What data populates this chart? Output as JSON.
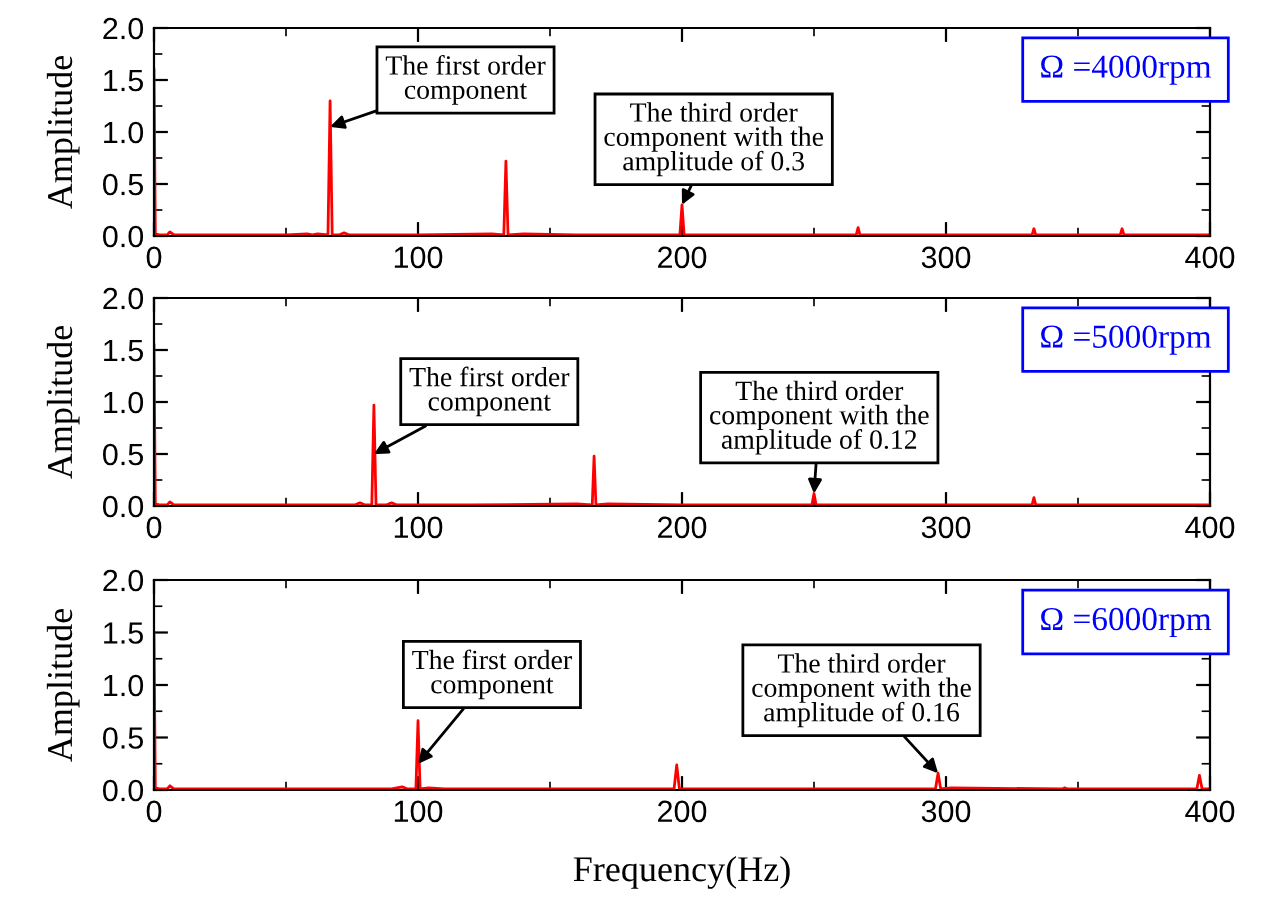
{
  "chart_data": [
    {
      "type": "line",
      "ylabel": "Amplitude",
      "xlim": [
        0,
        400
      ],
      "xticks": [
        0,
        100,
        200,
        300,
        400
      ],
      "ylim": [
        0,
        2.0
      ],
      "yticks": [
        {
          "value": 0,
          "label": "0.0"
        },
        {
          "value": 0.5,
          "label": "0.5"
        },
        {
          "value": 1.0,
          "label": "1.0"
        },
        {
          "value": 1.5,
          "label": "1.5"
        },
        {
          "value": 2.0,
          "label": "2.0"
        }
      ],
      "grid": false,
      "legend": false,
      "marker": "none",
      "line_style": "solid",
      "series": [
        {
          "color": "#ff0000",
          "x": [
            0,
            0.5,
            2,
            5,
            6,
            7.5,
            15,
            30,
            50,
            58,
            60,
            62,
            65.9,
            66.7,
            67.5,
            70,
            72,
            74,
            80,
            100,
            128,
            132.5,
            133.3,
            134.1,
            140,
            160,
            199.2,
            200,
            200.8,
            210,
            266,
            266.7,
            267.4,
            300,
            332.6,
            333.3,
            334,
            366,
            366.7,
            367.4,
            400
          ],
          "values": [
            1.6,
            0.02,
            0.01,
            0.01,
            0.04,
            0.01,
            0.01,
            0.01,
            0.01,
            0.02,
            0.01,
            0.02,
            0.01,
            1.3,
            0.01,
            0.01,
            0.03,
            0.01,
            0.01,
            0.01,
            0.02,
            0.01,
            0.72,
            0.01,
            0.02,
            0.01,
            0.01,
            0.3,
            0.01,
            0.01,
            0.01,
            0.08,
            0.01,
            0.01,
            0.01,
            0.07,
            0.01,
            0.01,
            0.07,
            0.01,
            0.01
          ]
        }
      ],
      "annotations": [
        {
          "text": "The first order\ncomponent",
          "x": 66.7,
          "y": 1.05
        },
        {
          "text": "The third order\ncomponent with the\namplitude of 0.3",
          "x": 200,
          "y": 0.3
        },
        "Ω =4000rpm"
      ]
    },
    {
      "type": "line",
      "ylabel": "Amplitude",
      "xlim": [
        0,
        400
      ],
      "xticks": [
        0,
        100,
        200,
        300,
        400
      ],
      "ylim": [
        0,
        2.0
      ],
      "yticks": [
        {
          "value": 0,
          "label": "0.0"
        },
        {
          "value": 0.5,
          "label": "0.5"
        },
        {
          "value": 1.0,
          "label": "1.0"
        },
        {
          "value": 1.5,
          "label": "1.5"
        },
        {
          "value": 2.0,
          "label": "2.0"
        }
      ],
      "grid": false,
      "legend": false,
      "marker": "none",
      "line_style": "solid",
      "series": [
        {
          "color": "#ff0000",
          "x": [
            0,
            0.5,
            2,
            5,
            6,
            7.5,
            20,
            50,
            76,
            78,
            80,
            82.5,
            83.3,
            84.1,
            88,
            90,
            92,
            120,
            160,
            166,
            166.7,
            167.4,
            172,
            200,
            249.2,
            250,
            250.8,
            300,
            332.6,
            333.3,
            334,
            400
          ],
          "values": [
            1.55,
            0.02,
            0.01,
            0.01,
            0.04,
            0.01,
            0.01,
            0.01,
            0.01,
            0.03,
            0.01,
            0.01,
            0.97,
            0.01,
            0.01,
            0.03,
            0.01,
            0.01,
            0.02,
            0.01,
            0.48,
            0.01,
            0.02,
            0.01,
            0.01,
            0.12,
            0.01,
            0.01,
            0.01,
            0.08,
            0.01,
            0.01
          ]
        }
      ],
      "annotations": [
        {
          "text": "The first order\ncomponent",
          "x": 83.3,
          "y": 0.5
        },
        {
          "text": "The third order\ncomponent with the\namplitude of 0.12",
          "x": 250,
          "y": 0.12
        },
        "Ω =5000rpm"
      ]
    },
    {
      "type": "line",
      "xlabel": "Frequency(Hz)",
      "ylabel": "Amplitude",
      "xlim": [
        0,
        400
      ],
      "xticks": [
        0,
        100,
        200,
        300,
        400
      ],
      "ylim": [
        0,
        2.0
      ],
      "yticks": [
        {
          "value": 0,
          "label": "0.0"
        },
        {
          "value": 0.5,
          "label": "0.5"
        },
        {
          "value": 1.0,
          "label": "1.0"
        },
        {
          "value": 1.5,
          "label": "1.5"
        },
        {
          "value": 2.0,
          "label": "2.0"
        }
      ],
      "grid": false,
      "legend": false,
      "marker": "none",
      "line_style": "solid",
      "series": [
        {
          "color": "#ff0000",
          "x": [
            0,
            0.5,
            2,
            5,
            6,
            7.5,
            20,
            50,
            90,
            94,
            96,
            99.2,
            100,
            100.8,
            104,
            110,
            150,
            197,
            198,
            199,
            210,
            250,
            290,
            296,
            297,
            298,
            302,
            344,
            345,
            346,
            390,
            395,
            396,
            397,
            400
          ],
          "values": [
            1.5,
            0.02,
            0.01,
            0.01,
            0.04,
            0.01,
            0.01,
            0.01,
            0.01,
            0.03,
            0.01,
            0.01,
            0.66,
            0.01,
            0.02,
            0.01,
            0.01,
            0.01,
            0.24,
            0.01,
            0.01,
            0.01,
            0.01,
            0.01,
            0.16,
            0.01,
            0.02,
            0.01,
            0.02,
            0.01,
            0.01,
            0.01,
            0.14,
            0.01,
            0.01
          ]
        }
      ],
      "annotations": [
        {
          "text": "The first order\ncomponent",
          "x": 100,
          "y": 0.25
        },
        {
          "text": "The third order\ncomponent with the\namplitude of 0.16",
          "x": 297,
          "y": 0.16
        },
        "Ω =6000rpm"
      ]
    }
  ]
}
